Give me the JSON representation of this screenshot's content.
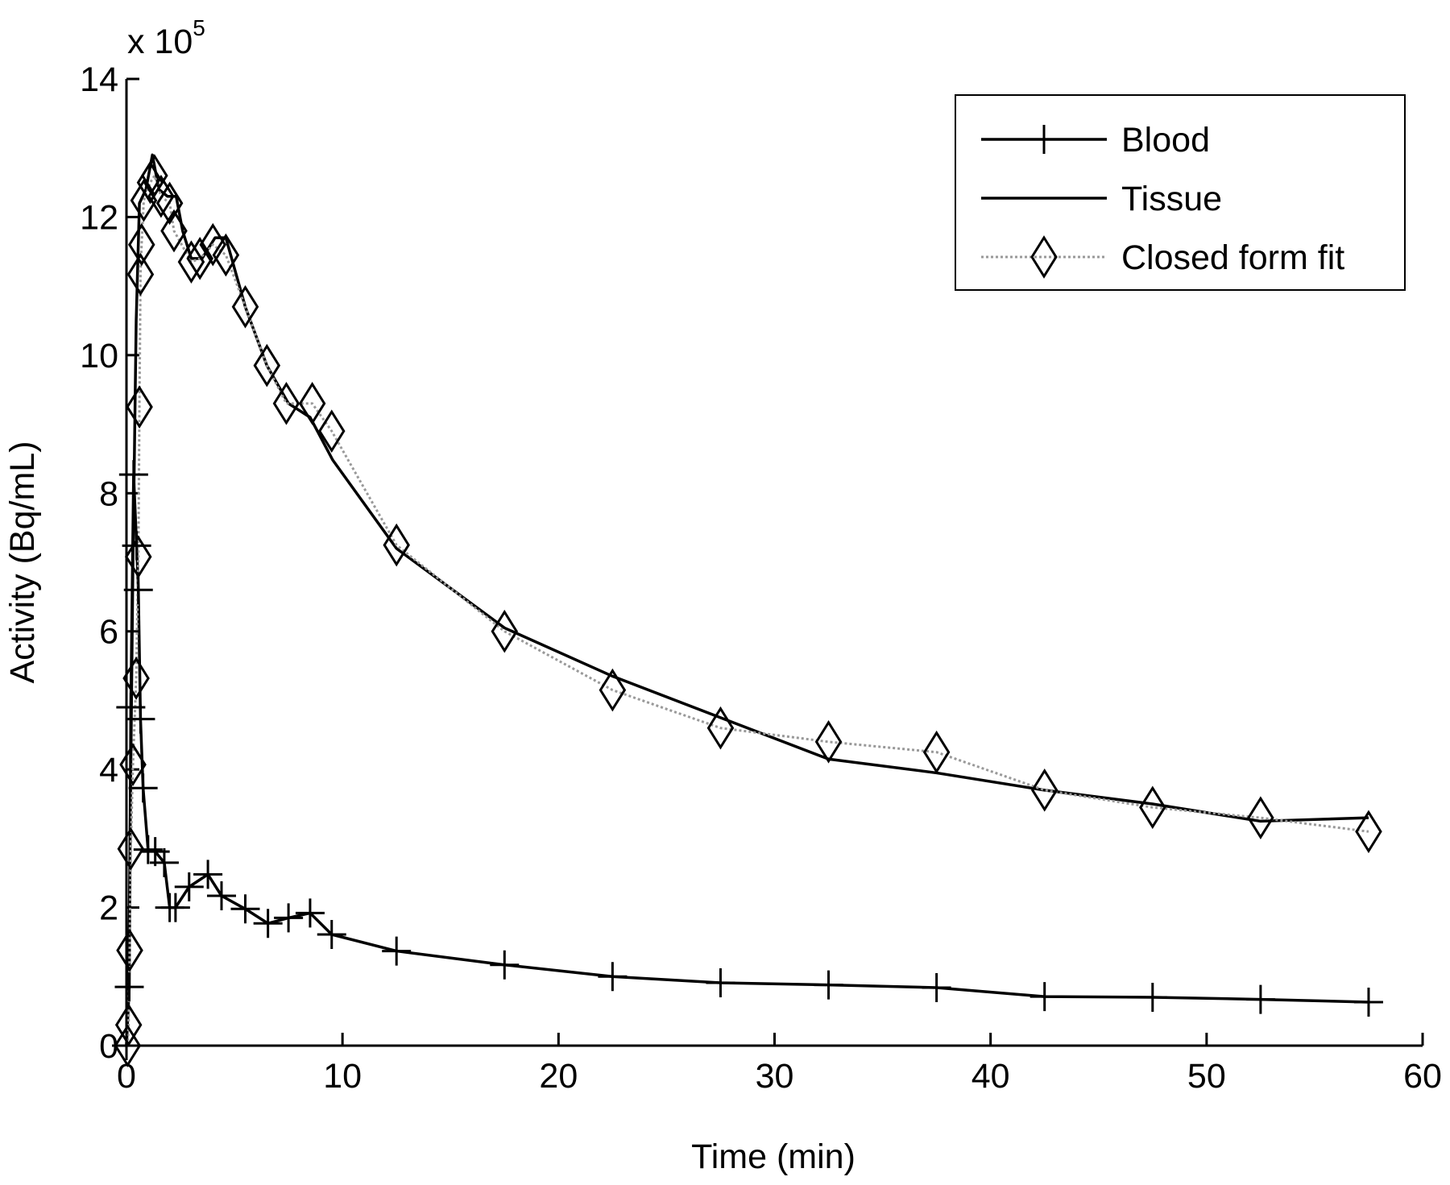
{
  "chart_data": {
    "type": "line",
    "x_label": "Time (min)",
    "y_label": "Activity (Bq/mL)",
    "y_multiplier": {
      "base": "x 10",
      "exponent": "5"
    },
    "xlim": [
      0,
      60
    ],
    "xticks": [
      0,
      10,
      20,
      30,
      40,
      50,
      60
    ],
    "ylim": [
      0,
      14
    ],
    "yticks": [
      0,
      2,
      4,
      6,
      8,
      10,
      12,
      14
    ],
    "grid": false,
    "legend": "upper right",
    "series": [
      {
        "name": "Blood",
        "color": "#000000",
        "marker": "plus",
        "line": "solid",
        "x": [
          0,
          0.13,
          0.2,
          0.33,
          0.47,
          0.55,
          0.65,
          0.77,
          1.0,
          1.33,
          1.75,
          2.0,
          2.27,
          2.9,
          3.77,
          4.4,
          5.5,
          6.55,
          7.5,
          8.5,
          9.5,
          12.5,
          17.5,
          22.5,
          27.5,
          32.5,
          37.5,
          42.5,
          47.5,
          52.5,
          57.5
        ],
        "values": [
          0,
          0.85,
          4.9,
          8.27,
          7.24,
          6.6,
          4.73,
          3.73,
          2.84,
          2.81,
          2.65,
          2.0,
          2.0,
          2.3,
          2.48,
          2.17,
          1.98,
          1.77,
          1.85,
          1.92,
          1.61,
          1.37,
          1.17,
          1.0,
          0.91,
          0.88,
          0.84,
          0.71,
          0.7,
          0.67,
          0.63
        ]
      },
      {
        "name": "Tissue",
        "color": "#000000",
        "marker": "none",
        "line": "solid",
        "x": [
          0,
          0.1,
          0.2,
          0.3,
          0.45,
          0.6,
          0.9,
          1.2,
          1.5,
          1.9,
          2.3,
          2.6,
          3.0,
          3.5,
          4.1,
          4.6,
          5.5,
          6.5,
          7.5,
          8.5,
          9.55,
          12.5,
          17.5,
          22.5,
          27.5,
          32.5,
          37.5,
          42.5,
          47.5,
          52.5,
          57.5
        ],
        "values": [
          0,
          1.0,
          4.0,
          7.0,
          10.5,
          12.2,
          12.4,
          12.9,
          12.4,
          12.3,
          12.3,
          11.8,
          11.4,
          11.4,
          11.7,
          11.7,
          10.7,
          9.85,
          9.3,
          9.1,
          8.48,
          7.2,
          6.05,
          5.35,
          4.75,
          4.15,
          3.95,
          3.7,
          3.5,
          3.25,
          3.3
        ]
      },
      {
        "name": "Closed form fit",
        "color": "#999999",
        "marker": "diamond",
        "line": "dotted",
        "x": [
          0.05,
          0.1,
          0.15,
          0.2,
          0.3,
          0.45,
          0.55,
          0.6,
          0.65,
          0.7,
          0.8,
          1.1,
          1.3,
          1.6,
          2.0,
          2.2,
          3.0,
          3.4,
          4.0,
          4.6,
          5.5,
          6.5,
          7.4,
          8.6,
          9.5,
          12.5,
          17.5,
          22.5,
          27.5,
          32.5,
          37.5,
          42.5,
          47.5,
          52.5,
          57.5
        ],
        "values": [
          0.0,
          0.3,
          1.38,
          2.85,
          4.07,
          5.32,
          7.08,
          9.25,
          11.17,
          11.6,
          12.24,
          12.5,
          12.6,
          12.3,
          12.2,
          11.8,
          11.35,
          11.4,
          11.6,
          11.45,
          10.7,
          9.85,
          9.3,
          9.3,
          8.9,
          7.25,
          6.0,
          5.15,
          4.6,
          4.4,
          4.25,
          3.7,
          3.45,
          3.3,
          3.1
        ]
      }
    ]
  }
}
